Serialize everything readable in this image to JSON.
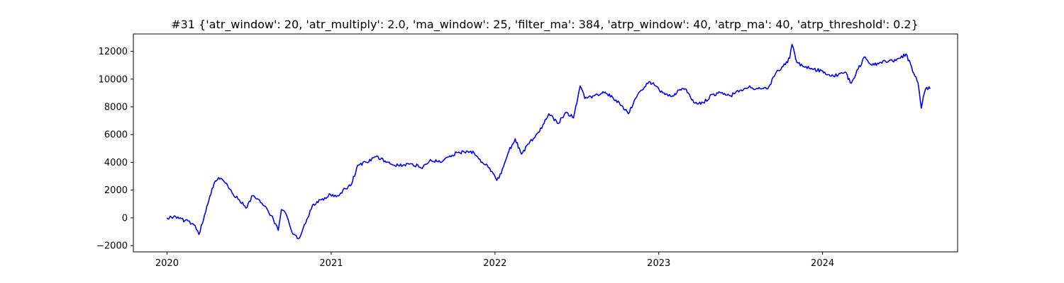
{
  "chart_data": {
    "type": "line",
    "title": "#31 {'atr_window': 20, 'atr_multiply': 2.0, 'ma_window': 25, 'filter_ma': 384, 'atrp_window': 40, 'atrp_ma': 40, 'atrp_threshold': 0.2}",
    "xlabel": "",
    "ylabel": "",
    "xlim": [
      "2019-10-18",
      "2024-10-28"
    ],
    "ylim": [
      -2450,
      13250
    ],
    "x_ticks": [
      "2020",
      "2021",
      "2022",
      "2023",
      "2024"
    ],
    "x_tick_dates": [
      "2020-01-01",
      "2021-01-01",
      "2022-01-01",
      "2023-01-01",
      "2024-01-01"
    ],
    "y_ticks": [
      -2000,
      0,
      2000,
      4000,
      6000,
      8000,
      10000,
      12000
    ],
    "y_tick_labels": [
      "−2000",
      "0",
      "2000",
      "4000",
      "6000",
      "8000",
      "10000",
      "12000"
    ],
    "grid": false,
    "legend": "none",
    "line_color": "#0000ff",
    "series": [
      {
        "x": [
          "2020-01-01",
          "2020-01-20",
          "2020-02-10",
          "2020-03-01",
          "2020-03-12",
          "2020-03-20",
          "2020-04-01",
          "2020-04-15",
          "2020-04-25",
          "2020-05-10",
          "2020-05-25",
          "2020-06-10",
          "2020-06-25",
          "2020-07-10",
          "2020-07-25",
          "2020-08-10",
          "2020-08-25",
          "2020-09-05",
          "2020-09-12",
          "2020-09-22",
          "2020-10-05",
          "2020-10-20",
          "2020-11-05",
          "2020-11-20",
          "2020-12-10",
          "2020-12-30",
          "2021-01-15",
          "2021-02-01",
          "2021-02-15",
          "2021-03-01",
          "2021-03-20",
          "2021-04-10",
          "2021-05-01",
          "2021-05-20",
          "2021-06-10",
          "2021-07-01",
          "2021-07-20",
          "2021-08-10",
          "2021-09-01",
          "2021-09-20",
          "2021-10-10",
          "2021-11-01",
          "2021-11-15",
          "2021-12-01",
          "2021-12-20",
          "2022-01-05",
          "2022-01-15",
          "2022-02-01",
          "2022-02-15",
          "2022-03-01",
          "2022-03-20",
          "2022-04-10",
          "2022-05-01",
          "2022-05-20",
          "2022-06-10",
          "2022-06-25",
          "2022-07-10",
          "2022-07-20",
          "2022-08-10",
          "2022-09-01",
          "2022-09-20",
          "2022-10-10",
          "2022-10-25",
          "2022-11-10",
          "2022-11-25",
          "2022-12-10",
          "2022-12-25",
          "2023-01-10",
          "2023-02-01",
          "2023-02-15",
          "2023-03-01",
          "2023-03-20",
          "2023-04-10",
          "2023-05-01",
          "2023-05-20",
          "2023-06-10",
          "2023-07-01",
          "2023-07-20",
          "2023-08-10",
          "2023-09-01",
          "2023-09-20",
          "2023-10-05",
          "2023-10-20",
          "2023-10-25",
          "2023-11-05",
          "2023-11-20",
          "2023-12-10",
          "2024-01-01",
          "2024-01-20",
          "2024-02-05",
          "2024-02-20",
          "2024-03-05",
          "2024-03-20",
          "2024-04-05",
          "2024-04-20",
          "2024-05-05",
          "2024-05-20",
          "2024-06-05",
          "2024-06-20",
          "2024-07-05",
          "2024-07-15",
          "2024-07-25",
          "2024-08-01",
          "2024-08-08",
          "2024-08-15",
          "2024-08-20",
          "2024-08-28"
        ],
        "values": [
          0,
          100,
          -200,
          -500,
          -1200,
          -400,
          1000,
          2500,
          2900,
          2500,
          1800,
          1300,
          700,
          1600,
          1300,
          700,
          -100,
          -900,
          600,
          300,
          -1000,
          -1500,
          -400,
          900,
          1300,
          1700,
          1600,
          2100,
          2400,
          3800,
          4000,
          4400,
          4100,
          3800,
          3800,
          3900,
          3600,
          4200,
          4000,
          4400,
          4700,
          4800,
          4700,
          4000,
          3600,
          2700,
          3200,
          4800,
          5700,
          4600,
          5500,
          6200,
          7500,
          6800,
          7600,
          7200,
          9500,
          8600,
          8800,
          9000,
          8700,
          8100,
          7500,
          8600,
          9200,
          9800,
          9500,
          9000,
          8800,
          9200,
          9300,
          8300,
          8300,
          8900,
          9000,
          8800,
          9200,
          9400,
          9300,
          9300,
          10500,
          10900,
          11500,
          12500,
          11200,
          10900,
          10700,
          10600,
          10200,
          10300,
          10500,
          9700,
          10700,
          11600,
          11000,
          11100,
          11300,
          11300,
          11500,
          11800,
          11100,
          10200,
          9700,
          7900,
          9000,
          9400,
          9300
        ]
      }
    ]
  }
}
